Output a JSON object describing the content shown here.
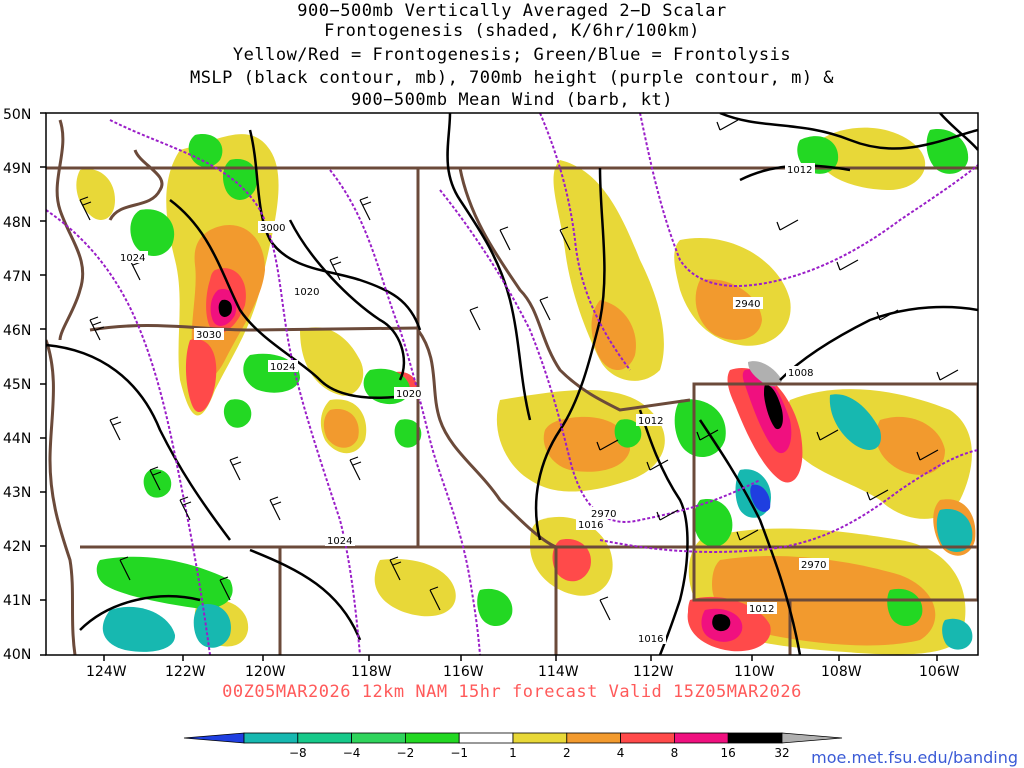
{
  "title": {
    "line1": "900−500mb Vertically Averaged 2−D Scalar",
    "line2": "Frontogenesis (shaded, K/6hr/100km)",
    "line3": "Yellow/Red = Frontogenesis;  Green/Blue = Frontolysis",
    "line4": "MSLP (black contour, mb), 700mb height (purple contour, m) &",
    "line5": "900−500mb Mean Wind (barb, kt)"
  },
  "axes": {
    "lat_labels": [
      "50N",
      "49N",
      "48N",
      "47N",
      "46N",
      "45N",
      "44N",
      "43N",
      "42N",
      "41N",
      "40N"
    ],
    "lon_labels": [
      "124W",
      "122W",
      "120W",
      "118W",
      "116W",
      "114W",
      "112W",
      "110W",
      "108W",
      "106W"
    ]
  },
  "contour_labels": {
    "mslp": [
      "1012",
      "1024",
      "1020",
      "1024",
      "1020",
      "1012",
      "1016",
      "1008",
      "1012",
      "1016",
      "1024"
    ],
    "height": [
      "3000",
      "3030",
      "2940",
      "2970",
      "2970"
    ]
  },
  "footer": {
    "valid": "00Z05MAR2026 12km NAM 15hr forecast Valid 15Z05MAR2026",
    "credit": "moe.met.fsu.edu/banding"
  },
  "colorbar": {
    "labels": [
      "−8",
      "−4",
      "−2",
      "−1",
      "1",
      "2",
      "4",
      "8",
      "16",
      "32"
    ],
    "colors": [
      "#1f3fe0",
      "#17b8b0",
      "#17c98a",
      "#2fd45c",
      "#23d823",
      "#ffffff",
      "#e8d838",
      "#f29a2e",
      "#ff4a4a",
      "#f0107f",
      "#000000",
      "#b0b0b0"
    ]
  },
  "colors": {
    "mslp": "#000000",
    "height": "#9a1ec8",
    "borders": "#6b4a3a",
    "frontogenesis_light": "#e8d838",
    "frontogenesis_mid": "#f29a2e",
    "frontogenesis_strong": "#ff4a4a",
    "frontogenesis_max": "#f0107f",
    "frontolysis": "#23d823",
    "frontolysis_strong": "#17b8b0"
  }
}
